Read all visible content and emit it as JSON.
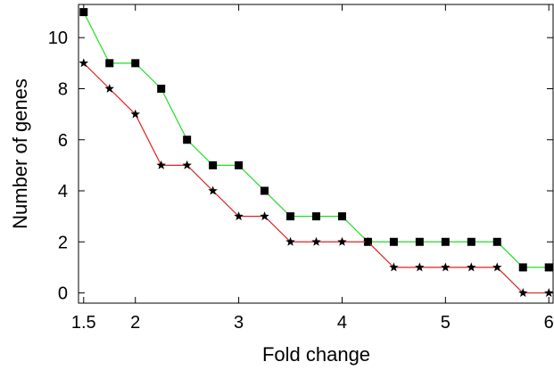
{
  "chart_data": {
    "type": "line",
    "title": "",
    "xlabel": "Fold change",
    "ylabel": "Number of genes",
    "xlim": [
      1.45,
      6.05
    ],
    "ylim": [
      -0.4,
      11.3
    ],
    "xticks": [
      1.5,
      2,
      3,
      4,
      5,
      6
    ],
    "xtick_labels": [
      "1.5",
      "2",
      "3",
      "4",
      "5",
      "6"
    ],
    "yticks": [
      0,
      2,
      4,
      6,
      8,
      10
    ],
    "ytick_labels": [
      "0",
      "2",
      "4",
      "6",
      "8",
      "10"
    ],
    "grid": false,
    "legend": "none",
    "x": [
      1.5,
      1.75,
      2.0,
      2.25,
      2.5,
      2.75,
      3.0,
      3.25,
      3.5,
      3.75,
      4.0,
      4.25,
      4.5,
      4.75,
      5.0,
      5.25,
      5.5,
      5.75,
      6.0
    ],
    "series": [
      {
        "color": "#22dd22",
        "marker": "square",
        "values": [
          11,
          9,
          9,
          8,
          6,
          5,
          5,
          4,
          3,
          3,
          3,
          2,
          2,
          2,
          2,
          2,
          2,
          1,
          1
        ]
      },
      {
        "color": "#dd2222",
        "marker": "star",
        "values": [
          9,
          8,
          7,
          5,
          5,
          4,
          3,
          3,
          2,
          2,
          2,
          2,
          1,
          1,
          1,
          1,
          1,
          0,
          0
        ]
      }
    ]
  }
}
